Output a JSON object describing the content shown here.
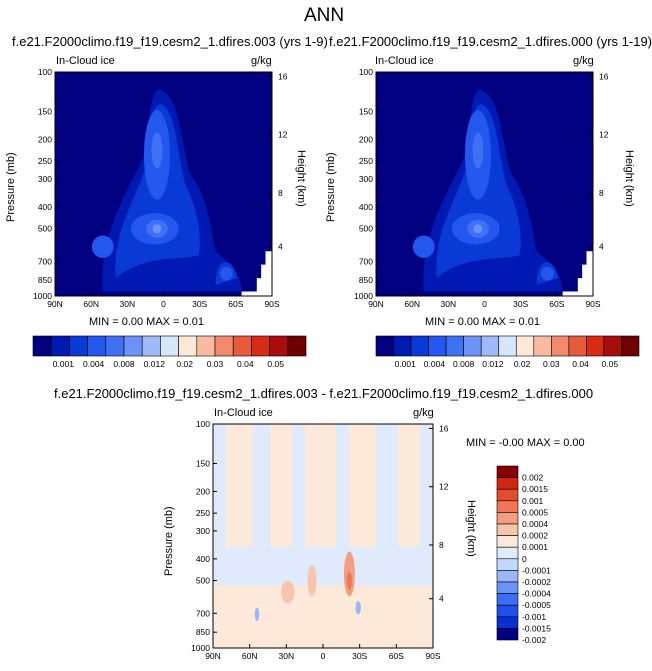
{
  "main_title": "ANN",
  "colors": {
    "background": "#000080",
    "seq_levels": [
      "#000080",
      "#0019b3",
      "#0a3ad6",
      "#2457ee",
      "#3f71f5",
      "#6b93f7",
      "#9fbaf8",
      "#d6e6fb",
      "#fde7d6",
      "#f7bba0",
      "#f08a6a",
      "#e85a3c",
      "#d72a17",
      "#a80d0b",
      "#6e0000"
    ],
    "diff_levels": [
      "#000080",
      "#0a2fd0",
      "#1f50ea",
      "#3a6ff3",
      "#6b93f7",
      "#98b6f8",
      "#c4d8fb",
      "#dfeafc",
      "#fde9d9",
      "#f7c4ad",
      "#f49e80",
      "#ef7556",
      "#e54b2d",
      "#cf2514",
      "#8a0000"
    ]
  },
  "chart_data": [
    {
      "type": "heatmap",
      "title": "f.e21.F2000climo.f19_f19.cesm2_1.dfires.003 (yrs 1-9)",
      "corner_left": "In-Cloud ice",
      "corner_right": "g/kg",
      "ylabel": "Pressure (mb)",
      "ylabel_right": "Height (km)",
      "x_ticks": [
        "90N",
        "60N",
        "30N",
        "0",
        "30S",
        "60S",
        "90S"
      ],
      "y_ticks": [
        "100",
        "150",
        "200",
        "250",
        "300",
        "400",
        "500",
        "700",
        "850",
        "1000"
      ],
      "y_right_ticks": [
        "16",
        "12",
        "8",
        "4"
      ],
      "min_max_text": "MIN =  0.00  MAX =  0.01",
      "colorbar_labels": [
        "0.001",
        "0.004",
        "0.008",
        "0.012",
        "0.02",
        "0.03",
        "0.04",
        "0.05"
      ]
    },
    {
      "type": "heatmap",
      "title": "f.e21.F2000climo.f19_f19.cesm2_1.dfires.000 (yrs 1-19)",
      "corner_left": "In-Cloud ice",
      "corner_right": "g/kg",
      "ylabel": "Pressure (mb)",
      "ylabel_right": "Height (km)",
      "x_ticks": [
        "90N",
        "60N",
        "30N",
        "0",
        "30S",
        "60S",
        "90S"
      ],
      "y_ticks": [
        "100",
        "150",
        "200",
        "250",
        "300",
        "400",
        "500",
        "700",
        "850",
        "1000"
      ],
      "y_right_ticks": [
        "16",
        "12",
        "8",
        "4"
      ],
      "min_max_text": "MIN =  0.00  MAX =  0.01",
      "colorbar_labels": [
        "0.001",
        "0.004",
        "0.008",
        "0.012",
        "0.02",
        "0.03",
        "0.04",
        "0.05"
      ]
    },
    {
      "type": "heatmap",
      "title": "f.e21.F2000climo.f19_f19.cesm2_1.dfires.003 - f.e21.F2000climo.f19_f19.cesm2_1.dfires.000",
      "corner_left": "In-Cloud ice",
      "corner_right": "g/kg",
      "ylabel": "Pressure (mb)",
      "ylabel_right": "Height (km)",
      "x_ticks": [
        "90N",
        "60N",
        "30N",
        "0",
        "30S",
        "60S",
        "90S"
      ],
      "y_ticks": [
        "100",
        "150",
        "200",
        "250",
        "300",
        "400",
        "500",
        "700",
        "850",
        "1000"
      ],
      "y_right_ticks": [
        "16",
        "12",
        "8",
        "4"
      ],
      "min_max_text": "MIN = -0.00  MAX =  0.00",
      "colorbar_labels": [
        "0.002",
        "0.0015",
        "0.001",
        "0.0005",
        "0.0004",
        "0.0002",
        "0.0001",
        "0",
        "-0.0001",
        "-0.0002",
        "-0.0004",
        "-0.0005",
        "-0.001",
        "-0.0015",
        "-0.002"
      ]
    }
  ]
}
